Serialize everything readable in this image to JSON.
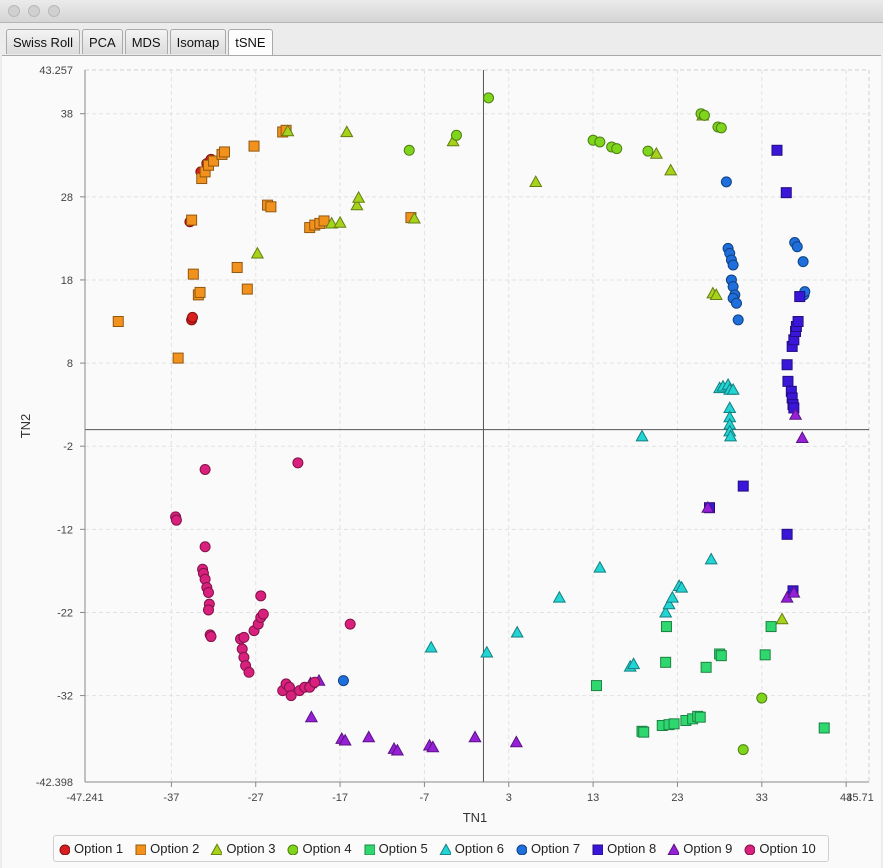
{
  "window": {
    "title": ""
  },
  "tabs": [
    {
      "label": "Swiss Roll",
      "active": false
    },
    {
      "label": "PCA",
      "active": false
    },
    {
      "label": "MDS",
      "active": false
    },
    {
      "label": "Isomap",
      "active": false
    },
    {
      "label": "tSNE",
      "active": true
    }
  ],
  "chart_data": {
    "type": "scatter",
    "xlabel": "TN1",
    "ylabel": "TN2",
    "xlim": [
      -47.241,
      45.71
    ],
    "ylim": [
      -42.398,
      43.257
    ],
    "x_ticks": [
      -37,
      -27,
      -17,
      -7,
      3,
      13,
      23,
      33,
      43
    ],
    "y_ticks": [
      38,
      28,
      18,
      8,
      -2,
      -12,
      -22,
      -32
    ],
    "x_end_labels": [
      "-47.241",
      "45.71"
    ],
    "y_end_labels": [
      "43.257",
      "-42.398"
    ],
    "grid": true,
    "zero_lines": true,
    "legend_position": "bottom",
    "series": [
      {
        "name": "Option 1",
        "marker": "circle",
        "color": "#d81e1e",
        "points": [
          [
            -34.8,
            25.0
          ],
          [
            -34.6,
            13.2
          ],
          [
            -34.5,
            13.5
          ],
          [
            -32.8,
            32.0
          ],
          [
            -32.3,
            32.5
          ],
          [
            -33.5,
            31.0
          ]
        ]
      },
      {
        "name": "Option 2",
        "marker": "square",
        "color": "#f2921c",
        "points": [
          [
            -43.3,
            13.0
          ],
          [
            -36.2,
            8.6
          ],
          [
            -34.6,
            25.2
          ],
          [
            -34.4,
            18.7
          ],
          [
            -33.8,
            16.2
          ],
          [
            -33.6,
            16.5
          ],
          [
            -33.4,
            30.2
          ],
          [
            -33.0,
            31.0
          ],
          [
            -32.6,
            31.8
          ],
          [
            -32.0,
            32.3
          ],
          [
            -31.0,
            33.1
          ],
          [
            -30.7,
            33.4
          ],
          [
            -29.2,
            19.5
          ],
          [
            -28.0,
            16.9
          ],
          [
            -27.2,
            34.1
          ],
          [
            -25.6,
            27.0
          ],
          [
            -25.2,
            26.8
          ],
          [
            -23.8,
            35.8
          ],
          [
            -23.4,
            36.0
          ],
          [
            -20.6,
            24.3
          ],
          [
            -20.0,
            24.6
          ],
          [
            -19.4,
            24.8
          ],
          [
            -18.9,
            25.1
          ],
          [
            -8.6,
            25.5
          ]
        ]
      },
      {
        "name": "Option 3",
        "marker": "triangle",
        "color": "#a6d21c",
        "points": [
          [
            -26.8,
            21.2
          ],
          [
            -23.2,
            35.9
          ],
          [
            -18.0,
            24.8
          ],
          [
            -17.0,
            24.9
          ],
          [
            -16.2,
            35.8
          ],
          [
            -15.0,
            27.0
          ],
          [
            -14.8,
            27.9
          ],
          [
            -8.2,
            25.4
          ],
          [
            -3.6,
            34.7
          ],
          [
            6.2,
            29.8
          ],
          [
            20.5,
            33.2
          ],
          [
            22.2,
            31.2
          ],
          [
            26.0,
            37.8
          ],
          [
            27.2,
            16.4
          ],
          [
            27.6,
            16.2
          ],
          [
            35.4,
            -22.8
          ]
        ]
      },
      {
        "name": "Option 4",
        "marker": "circle",
        "color": "#7fd41c",
        "points": [
          [
            -8.8,
            33.6
          ],
          [
            -3.2,
            35.4
          ],
          [
            0.6,
            39.9
          ],
          [
            13.0,
            34.8
          ],
          [
            13.8,
            34.6
          ],
          [
            15.2,
            34.0
          ],
          [
            15.8,
            33.8
          ],
          [
            19.5,
            33.5
          ],
          [
            25.8,
            38.0
          ],
          [
            26.2,
            37.8
          ],
          [
            27.8,
            36.4
          ],
          [
            28.2,
            36.3
          ],
          [
            30.8,
            -38.5
          ],
          [
            33.0,
            -32.3
          ]
        ]
      },
      {
        "name": "Option 5",
        "marker": "square",
        "color": "#2fd86f",
        "points": [
          [
            13.4,
            -30.8
          ],
          [
            18.8,
            -36.3
          ],
          [
            19.0,
            -36.4
          ],
          [
            21.2,
            -35.6
          ],
          [
            21.6,
            -28.0
          ],
          [
            21.7,
            -23.7
          ],
          [
            22.0,
            -35.5
          ],
          [
            22.6,
            -35.4
          ],
          [
            24.0,
            -35.0
          ],
          [
            24.8,
            -34.8
          ],
          [
            25.4,
            -34.5
          ],
          [
            25.7,
            -34.6
          ],
          [
            26.4,
            -28.6
          ],
          [
            28.0,
            -27.0
          ],
          [
            28.2,
            -27.2
          ],
          [
            33.4,
            -27.1
          ],
          [
            34.1,
            -23.7
          ],
          [
            40.4,
            -35.9
          ]
        ]
      },
      {
        "name": "Option 6",
        "marker": "triangle",
        "color": "#22d4d4",
        "points": [
          [
            -6.2,
            -26.2
          ],
          [
            0.4,
            -26.8
          ],
          [
            4.0,
            -24.4
          ],
          [
            9.0,
            -20.2
          ],
          [
            13.8,
            -16.6
          ],
          [
            17.4,
            -28.5
          ],
          [
            17.8,
            -28.2
          ],
          [
            18.8,
            -0.8
          ],
          [
            21.6,
            -22.0
          ],
          [
            22.0,
            -21.0
          ],
          [
            22.4,
            -20.2
          ],
          [
            23.2,
            -18.8
          ],
          [
            23.5,
            -19.0
          ],
          [
            27.0,
            -15.6
          ],
          [
            28.0,
            5.0
          ],
          [
            28.4,
            5.2
          ],
          [
            29.0,
            5.4
          ],
          [
            29.2,
            4.8
          ],
          [
            29.2,
            2.6
          ],
          [
            29.2,
            1.5
          ],
          [
            29.2,
            0.6
          ],
          [
            29.2,
            -0.2
          ],
          [
            29.3,
            -0.8
          ],
          [
            29.6,
            4.8
          ]
        ]
      },
      {
        "name": "Option 7",
        "marker": "circle",
        "color": "#1e6edb",
        "points": [
          [
            -16.6,
            -30.2
          ],
          [
            28.8,
            29.8
          ],
          [
            29.0,
            21.8
          ],
          [
            29.2,
            21.2
          ],
          [
            29.4,
            20.4
          ],
          [
            29.6,
            19.8
          ],
          [
            29.4,
            18.0
          ],
          [
            29.6,
            17.2
          ],
          [
            29.8,
            16.2
          ],
          [
            29.6,
            15.8
          ],
          [
            30.0,
            15.2
          ],
          [
            30.2,
            13.2
          ],
          [
            36.9,
            22.5
          ],
          [
            37.2,
            22.0
          ],
          [
            37.9,
            20.2
          ],
          [
            38.0,
            16.2
          ],
          [
            38.1,
            16.6
          ]
        ]
      },
      {
        "name": "Option 8",
        "marker": "square",
        "color": "#3a16d8",
        "points": [
          [
            26.8,
            -9.4
          ],
          [
            30.8,
            -6.8
          ],
          [
            34.8,
            33.6
          ],
          [
            35.9,
            28.5
          ],
          [
            36.0,
            -12.6
          ],
          [
            36.0,
            7.8
          ],
          [
            36.1,
            5.8
          ],
          [
            36.5,
            4.6
          ],
          [
            36.6,
            3.8
          ],
          [
            36.7,
            3.0
          ],
          [
            36.8,
            2.6
          ],
          [
            36.7,
            -19.4
          ],
          [
            36.6,
            10.0
          ],
          [
            36.8,
            10.8
          ],
          [
            37.0,
            11.8
          ],
          [
            37.1,
            12.4
          ],
          [
            37.3,
            13.0
          ],
          [
            37.5,
            16.0
          ]
        ]
      },
      {
        "name": "Option 9",
        "marker": "triangle",
        "color": "#9620d8",
        "points": [
          [
            -20.5,
            -30.5
          ],
          [
            -19.5,
            -30.2
          ],
          [
            -20.4,
            -34.6
          ],
          [
            -16.8,
            -37.2
          ],
          [
            -16.4,
            -37.4
          ],
          [
            -13.6,
            -37.0
          ],
          [
            -10.6,
            -38.4
          ],
          [
            -10.2,
            -38.6
          ],
          [
            -6.4,
            -38.0
          ],
          [
            -6.0,
            -38.2
          ],
          [
            -1.0,
            -37.0
          ],
          [
            3.9,
            -37.6
          ],
          [
            26.6,
            -9.4
          ],
          [
            36.0,
            -20.2
          ],
          [
            36.8,
            -19.6
          ],
          [
            37.0,
            1.8
          ],
          [
            37.8,
            -1.0
          ]
        ]
      },
      {
        "name": "Option 10",
        "marker": "circle",
        "color": "#d8207c",
        "points": [
          [
            -36.5,
            -10.5
          ],
          [
            -36.4,
            -10.9
          ],
          [
            -33.0,
            -4.8
          ],
          [
            -33.0,
            -14.1
          ],
          [
            -33.3,
            -16.8
          ],
          [
            -33.2,
            -17.3
          ],
          [
            -33.0,
            -18.0
          ],
          [
            -32.8,
            -19.0
          ],
          [
            -32.6,
            -19.6
          ],
          [
            -32.5,
            -21.0
          ],
          [
            -32.6,
            -21.7
          ],
          [
            -32.4,
            -24.7
          ],
          [
            -32.3,
            -24.9
          ],
          [
            -28.8,
            -25.2
          ],
          [
            -28.4,
            -25.0
          ],
          [
            -28.6,
            -26.4
          ],
          [
            -28.4,
            -27.4
          ],
          [
            -28.2,
            -28.4
          ],
          [
            -27.8,
            -29.2
          ],
          [
            -27.2,
            -24.2
          ],
          [
            -26.7,
            -23.4
          ],
          [
            -26.4,
            -22.6
          ],
          [
            -26.1,
            -22.2
          ],
          [
            -26.4,
            -20.0
          ],
          [
            -23.8,
            -31.4
          ],
          [
            -23.4,
            -30.6
          ],
          [
            -23.0,
            -31.0
          ],
          [
            -22.8,
            -32.0
          ],
          [
            -21.8,
            -31.4
          ],
          [
            -21.2,
            -31.0
          ],
          [
            -20.6,
            -31.0
          ],
          [
            -20.0,
            -30.4
          ],
          [
            -22.0,
            -4.0
          ],
          [
            -15.8,
            -23.4
          ]
        ]
      }
    ]
  }
}
